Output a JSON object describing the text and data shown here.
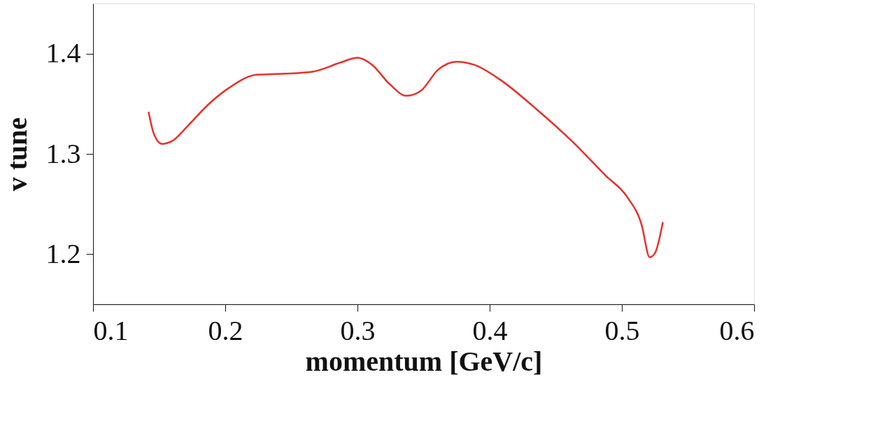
{
  "chart_data": {
    "type": "line",
    "xlabel": "momentum [GeV/c]",
    "ylabel": "v tune",
    "xlim": [
      0.1,
      0.6
    ],
    "xticks": [
      0.1,
      0.2,
      0.3,
      0.4,
      0.5,
      0.6
    ],
    "ylim": [
      1.15,
      1.45
    ],
    "yticks": [
      1.2,
      1.3,
      1.4
    ],
    "grid": false,
    "marker": "none",
    "line_style": "solid",
    "x": [
      0.142,
      0.146,
      0.152,
      0.16,
      0.171,
      0.187,
      0.203,
      0.224,
      0.245,
      0.266,
      0.287,
      0.3,
      0.311,
      0.324,
      0.337,
      0.348,
      0.361,
      0.375,
      0.388,
      0.409,
      0.435,
      0.462,
      0.488,
      0.504,
      0.515,
      0.521,
      0.525,
      0.531
    ],
    "series": [
      {
        "color": "#e8302a",
        "values": [
          1.342,
          1.32,
          1.31,
          1.313,
          1.327,
          1.349,
          1.366,
          1.379,
          1.38,
          1.382,
          1.391,
          1.396,
          1.389,
          1.37,
          1.358,
          1.363,
          1.384,
          1.392,
          1.389,
          1.373,
          1.345,
          1.313,
          1.278,
          1.257,
          1.229,
          1.197,
          1.201,
          1.232
        ]
      }
    ]
  }
}
